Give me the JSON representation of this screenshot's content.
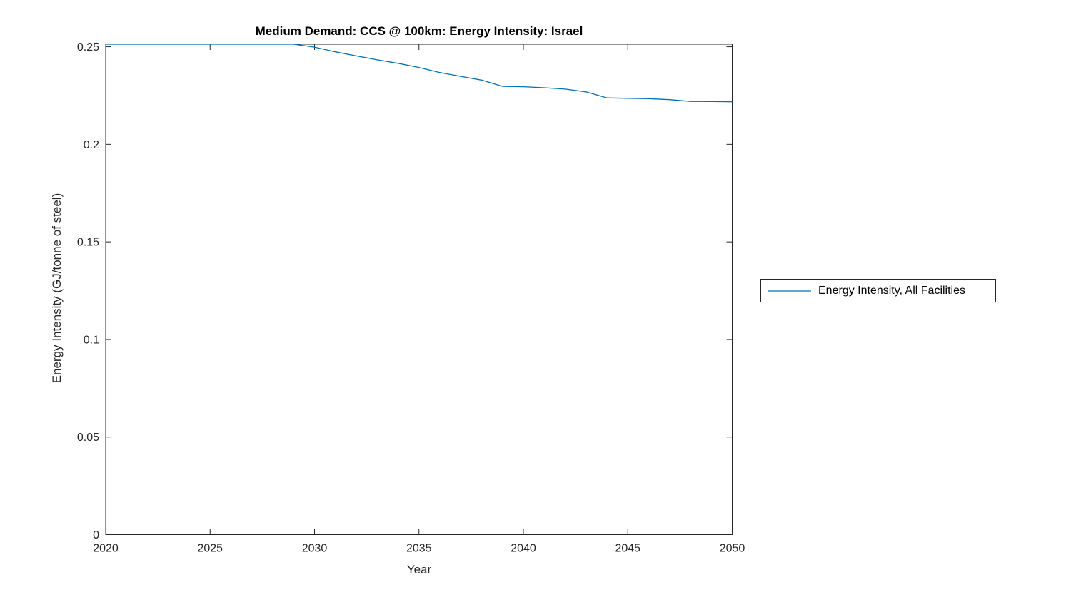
{
  "chart_data": {
    "type": "line",
    "title": "Medium Demand: CCS @ 100km: Energy Intensity: Israel",
    "xlabel": "Year",
    "ylabel": "Energy Intensity (GJ/tonne of steel)",
    "xlim": [
      2020,
      2050
    ],
    "ylim": [
      0,
      0.2513
    ],
    "x_ticks": [
      2020,
      2025,
      2030,
      2035,
      2040,
      2045,
      2050
    ],
    "x_tick_labels": [
      "2020",
      "2025",
      "2030",
      "2035",
      "2040",
      "2045",
      "2050"
    ],
    "y_ticks": [
      0,
      0.05,
      0.1,
      0.15,
      0.2,
      0.25
    ],
    "y_tick_labels": [
      "0",
      "0.05",
      "0.1",
      "0.15",
      "0.2",
      "0.25"
    ],
    "grid": false,
    "legend_position": "outside-right",
    "line_color": "#0072BD",
    "axis_color": "#262626",
    "series": [
      {
        "name": "Energy Intensity, All Facilities",
        "x": [
          2020,
          2021,
          2022,
          2023,
          2024,
          2025,
          2026,
          2027,
          2028,
          2029,
          2030,
          2031,
          2032,
          2033,
          2034,
          2035,
          2036,
          2037,
          2038,
          2039,
          2040,
          2041,
          2042,
          2043,
          2044,
          2045,
          2046,
          2047,
          2048,
          2049,
          2050
        ],
        "values": [
          0.2513,
          0.2513,
          0.2513,
          0.2513,
          0.2513,
          0.2513,
          0.2513,
          0.2513,
          0.2513,
          0.2513,
          0.2498,
          0.2474,
          0.2453,
          0.2433,
          0.2415,
          0.2394,
          0.2368,
          0.2348,
          0.2329,
          0.2297,
          0.2295,
          0.229,
          0.2283,
          0.2269,
          0.2238,
          0.2236,
          0.2234,
          0.2229,
          0.222,
          0.2219,
          0.2218
        ]
      }
    ]
  }
}
